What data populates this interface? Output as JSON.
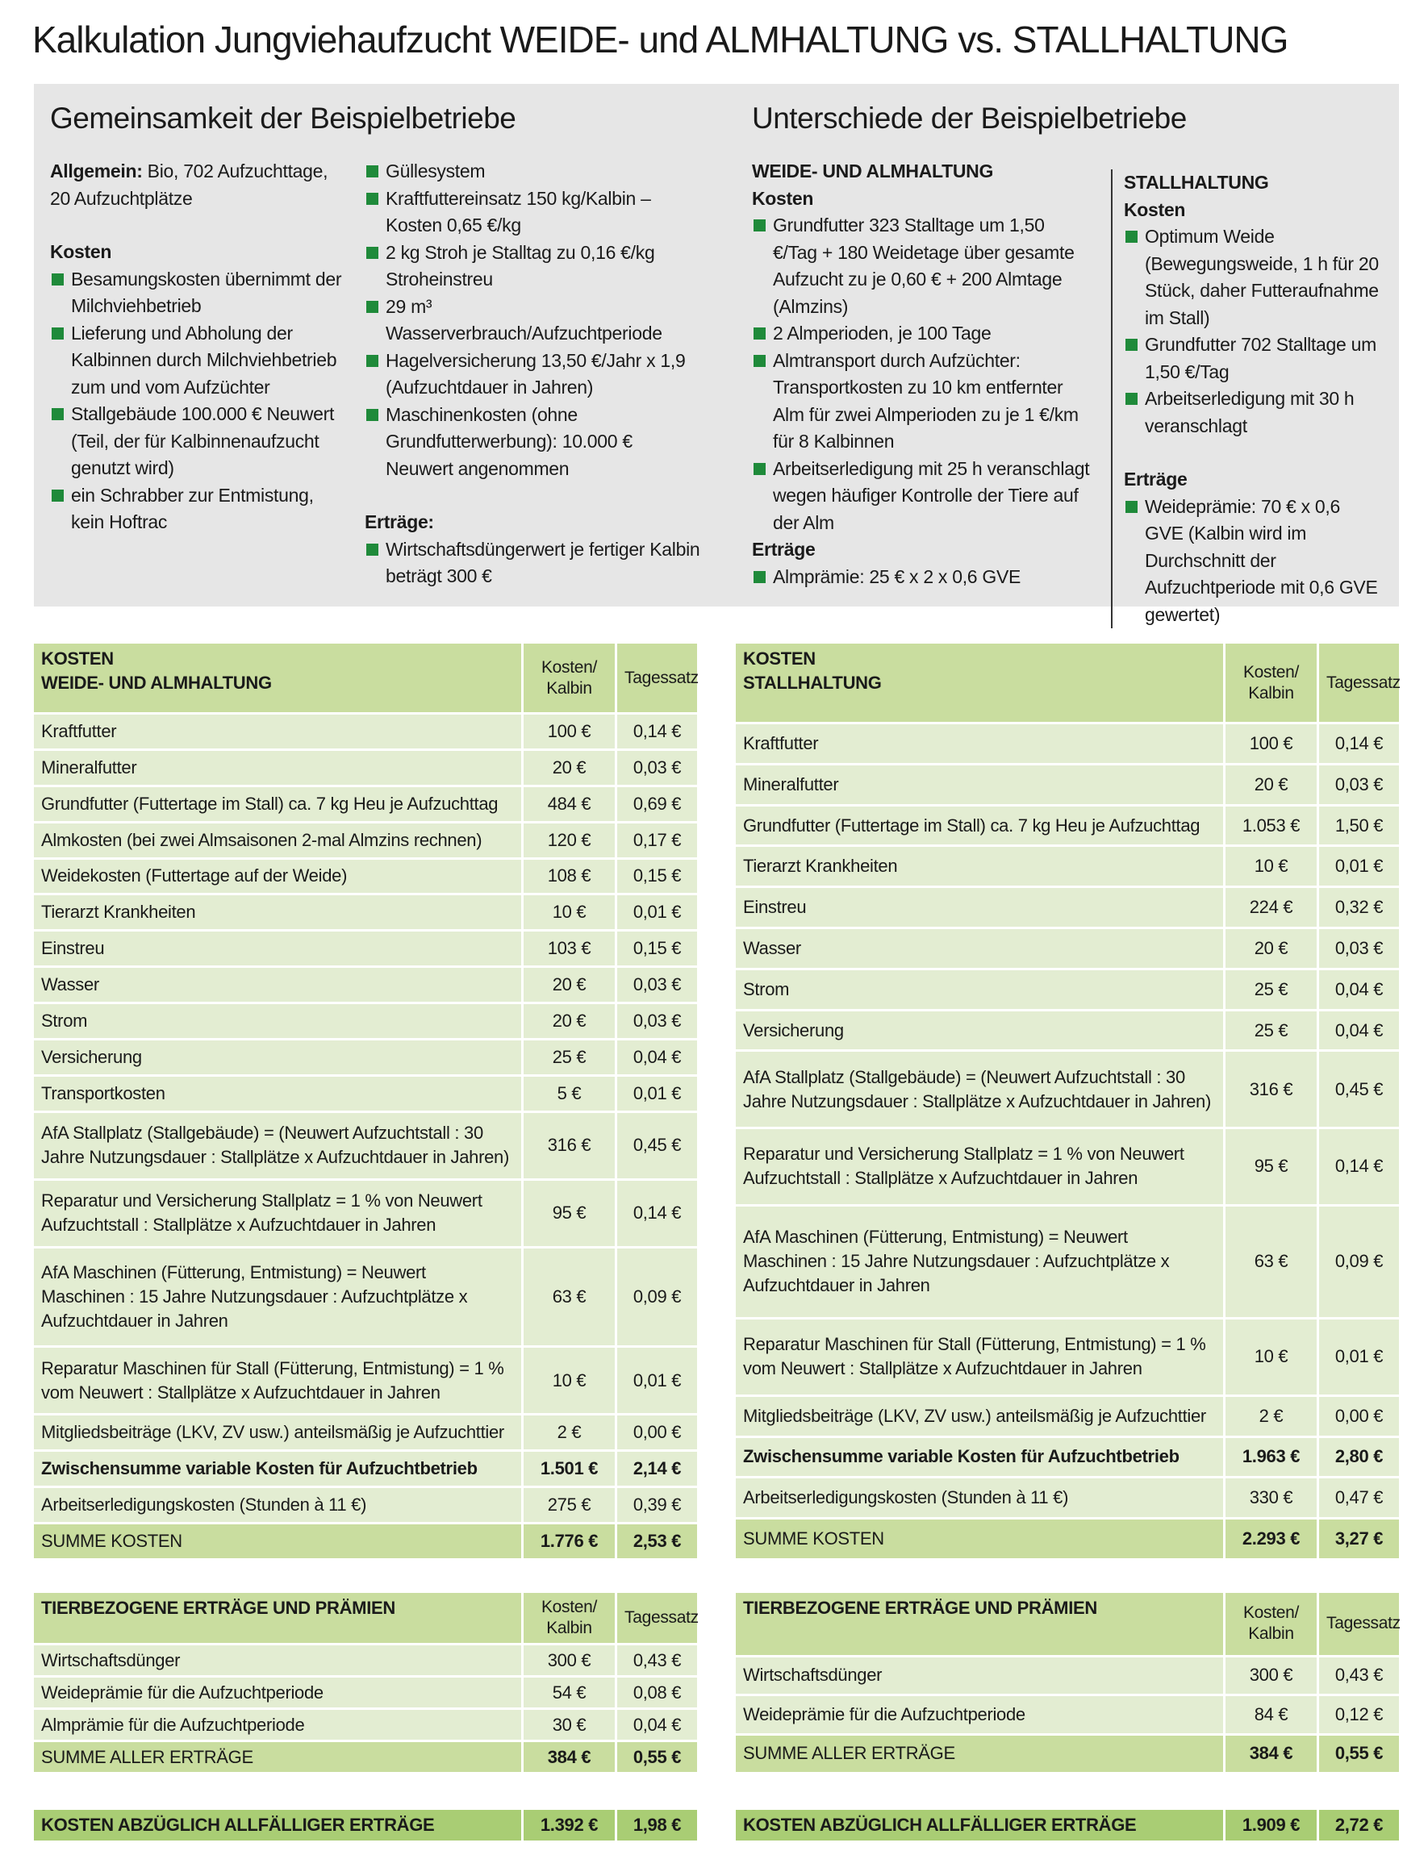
{
  "title": "Kalkulation Jungviehaufzucht WEIDE- und ALMHALTUNG vs. STALLHALTUNG",
  "common": {
    "heading": "Gemeinsamkeit der Beispielbetriebe",
    "general_label": "Allgemein:",
    "general_text": "Bio, 702 Aufzuchttage, 20 Aufzuchtplätze",
    "costs_heading": "Kosten",
    "costs": [
      "Besamungskosten übernimmt der Milchviehbetrieb",
      "Lieferung und Abholung der Kalbinnen durch Milchviehbetrieb zum und vom Aufzüchter",
      "Stallgebäude 100.000 € Neuwert (Teil, der für Kalbinnenaufzucht genutzt wird)",
      "ein Schrabber zur Entmistung, kein Hoftrac"
    ],
    "more_costs": [
      "Güllesystem",
      "Kraftfuttereinsatz 150 kg/Kalbin – Kosten 0,65 €/kg",
      "2 kg Stroh je Stalltag zu 0,16 €/kg Stroheinstreu",
      "29 m³ Wasserverbrauch/Aufzuchtperiode",
      "Hagelversicherung 13,50 €/Jahr x 1,9 (Aufzuchtdauer in Jahren)",
      "Maschinenkosten (ohne Grundfutterwerbung): 10.000 € Neuwert angenommen"
    ],
    "income_heading": "Erträge:",
    "income": [
      "Wirtschaftsdüngerwert je fertiger Kalbin beträgt 300 €"
    ]
  },
  "differences": {
    "heading": "Unterschiede der Beispielbetriebe",
    "farms": [
      {
        "title": "WEIDE- UND ALMHALTUNG",
        "costs_heading": "Kosten",
        "costs": [
          "Grundfutter 323 Stalltage um 1,50 €/Tag + 180 Weidetage über gesamte Aufzucht zu je 0,60 € + 200 Almtage (Almzins)",
          "2 Almperioden, je 100 Tage",
          "Almtransport durch Aufzüchter: Transportkosten zu 10 km entfernter Alm für zwei Almperioden zu je 1 €/km für 8 Kalbinnen",
          "Arbeitserledigung mit 25 h veranschlagt wegen häufiger Kontrolle der Tiere auf der Alm"
        ],
        "income_heading": "Erträge",
        "income": [
          "Almprämie: 25 € x 2 x 0,6 GVE"
        ]
      },
      {
        "title": "STALLHALTUNG",
        "costs_heading": "Kosten",
        "costs": [
          "Optimum Weide (Bewegungsweide, 1 h für 20 Stück, daher Futteraufnahme im Stall)",
          "Grundfutter 702 Stalltage um 1,50 €/Tag",
          "Arbeitserledigung mit 30 h veranschlagt"
        ],
        "income_heading": "Erträge",
        "income": [
          "Weideprämie: 70 € x 0,6 GVE (Kalbin wird im Durchschnitt der Aufzuchtperiode mit 0,6 GVE gewertet)"
        ]
      }
    ]
  },
  "tables": [
    {
      "costs": {
        "header": {
          "label": [
            "KOSTEN",
            "WEIDE- UND ALMHALTUNG"
          ],
          "cols": [
            "Kosten/ Kalbin",
            "Tagessatz"
          ]
        },
        "rows": [
          [
            "Kraftfutter",
            "100 €",
            "0,14 €"
          ],
          [
            "Mineralfutter",
            "20 €",
            "0,03 €"
          ],
          [
            "Grundfutter (Futtertage im Stall) ca. 7 kg Heu je Aufzuchttag",
            "484 €",
            "0,69 €"
          ],
          [
            "Almkosten (bei zwei Almsaisonen 2-mal Almzins rechnen)",
            "120 €",
            "0,17 €"
          ],
          [
            "Weidekosten (Futtertage auf der Weide)",
            "108 €",
            "0,15 €"
          ],
          [
            "Tierarzt Krankheiten",
            "10 €",
            "0,01 €"
          ],
          [
            "Einstreu",
            "103 €",
            "0,15 €"
          ],
          [
            "Wasser",
            "20 €",
            "0,03 €"
          ],
          [
            "Strom",
            "20 €",
            "0,03 €"
          ],
          [
            "Versicherung",
            "25 €",
            "0,04 €"
          ],
          [
            "Transportkosten",
            "5 €",
            "0,01 €"
          ],
          [
            "AfA Stallplatz (Stallgebäude) = (Neuwert Aufzuchtstall : 30 Jahre Nutzungsdauer : Stallplätze x Aufzuchtdauer in Jahren)",
            "316 €",
            "0,45 €"
          ],
          [
            "Reparatur und Versicherung Stallplatz = 1 % von Neuwert Aufzuchtstall : Stallplätze x Aufzuchtdauer in Jahren",
            "95 €",
            "0,14 €"
          ],
          [
            "AfA Maschinen (Fütterung, Entmistung) = Neuwert Maschinen : 15 Jahre Nutzungsdauer : Aufzuchtplätze x Aufzuchtdauer in Jahren",
            "63 €",
            "0,09 €"
          ],
          [
            "Reparatur Maschinen für Stall (Fütterung, Entmistung) = 1 % vom Neuwert : Stallplätze x Aufzuchtdauer in Jahren",
            "10 €",
            "0,01 €"
          ],
          [
            "Mitgliedsbeiträge (LKV, ZV usw.) anteilsmäßig je Aufzuchttier",
            "2 €",
            "0,00 €"
          ]
        ],
        "subtotal": [
          "Zwischensumme variable Kosten für Aufzuchtbetrieb",
          "1.501 €",
          "2,14 €"
        ],
        "labor": [
          "Arbeitserledigungskosten (Stunden à 11 €)",
          "275 €",
          "0,39 €"
        ],
        "total": [
          "SUMME KOSTEN",
          "1.776 €",
          "2,53 €"
        ]
      },
      "income": {
        "header": {
          "label": [
            "TIERBEZOGENE ERTRÄGE UND PRÄMIEN"
          ],
          "cols": [
            "Kosten/ Kalbin",
            "Tagessatz"
          ]
        },
        "rows": [
          [
            "Wirtschaftsdünger",
            "300 €",
            "0,43 €"
          ],
          [
            "Weideprämie für die Aufzuchtperiode",
            "54 €",
            "0,08 €"
          ],
          [
            "Almprämie für die Aufzuchtperiode",
            "30 €",
            "0,04 €"
          ]
        ],
        "total": [
          "SUMME ALLER ERTRÄGE",
          "384 €",
          "0,55 €"
        ]
      },
      "net": [
        "KOSTEN ABZÜGLICH ALLFÄLLIGER ERTRÄGE",
        "1.392 €",
        "1,98 €"
      ]
    },
    {
      "costs": {
        "header": {
          "label": [
            "KOSTEN",
            "STALLHALTUNG"
          ],
          "cols": [
            "Kosten/ Kalbin",
            "Tagessatz"
          ]
        },
        "rows": [
          [
            "Kraftfutter",
            "100 €",
            "0,14 €"
          ],
          [
            "Mineralfutter",
            "20 €",
            "0,03 €"
          ],
          [
            "Grundfutter (Futtertage im Stall) ca. 7 kg Heu je Aufzuchttag",
            "1.053 €",
            "1,50 €"
          ],
          [
            "Tierarzt Krankheiten",
            "10 €",
            "0,01 €"
          ],
          [
            "Einstreu",
            "224 €",
            "0,32 €"
          ],
          [
            "Wasser",
            "20 €",
            "0,03 €"
          ],
          [
            "Strom",
            "25 €",
            "0,04 €"
          ],
          [
            "Versicherung",
            "25 €",
            "0,04 €"
          ],
          [
            "AfA Stallplatz (Stallgebäude) = (Neuwert Aufzuchtstall : 30 Jahre Nutzungsdauer : Stallplätze x Aufzuchtdauer in Jahren)",
            "316 €",
            "0,45 €"
          ],
          [
            "Reparatur und Versicherung Stallplatz = 1 % von Neuwert Aufzuchtstall : Stallplätze x Aufzuchtdauer in Jahren",
            "95 €",
            "0,14 €"
          ],
          [
            "AfA Maschinen (Fütterung, Entmistung) = Neuwert Maschinen : 15 Jahre Nutzungsdauer : Aufzuchtplätze x Aufzuchtdauer in Jahren",
            "63 €",
            "0,09 €"
          ],
          [
            "Reparatur Maschinen für Stall (Fütterung, Entmistung) = 1 % vom Neuwert : Stallplätze x Aufzuchtdauer in Jahren",
            "10 €",
            "0,01 €"
          ],
          [
            "Mitgliedsbeiträge (LKV, ZV usw.) anteilsmäßig je Aufzuchttier",
            "2 €",
            "0,00 €"
          ]
        ],
        "subtotal": [
          "Zwischensumme variable Kosten für Aufzuchtbetrieb",
          "1.963 €",
          "2,80 €"
        ],
        "labor": [
          "Arbeitserledigungskosten (Stunden à 11 €)",
          "330 €",
          "0,47 €"
        ],
        "total": [
          "SUMME KOSTEN",
          "2.293 €",
          "3,27 €"
        ]
      },
      "income": {
        "header": {
          "label": [
            "TIERBEZOGENE ERTRÄGE UND PRÄMIEN"
          ],
          "cols": [
            "Kosten/ Kalbin",
            "Tagessatz"
          ]
        },
        "rows": [
          [
            "Wirtschaftsdünger",
            "300 €",
            "0,43 €"
          ],
          [
            "Weideprämie für die Aufzuchtperiode",
            "84 €",
            "0,12 €"
          ]
        ],
        "total": [
          "SUMME ALLER ERTRÄGE",
          "384 €",
          "0,55 €"
        ]
      },
      "net": [
        "KOSTEN ABZÜGLICH ALLFÄLLIGER ERTRÄGE",
        "1.909 €",
        "2,72 €"
      ]
    }
  ]
}
